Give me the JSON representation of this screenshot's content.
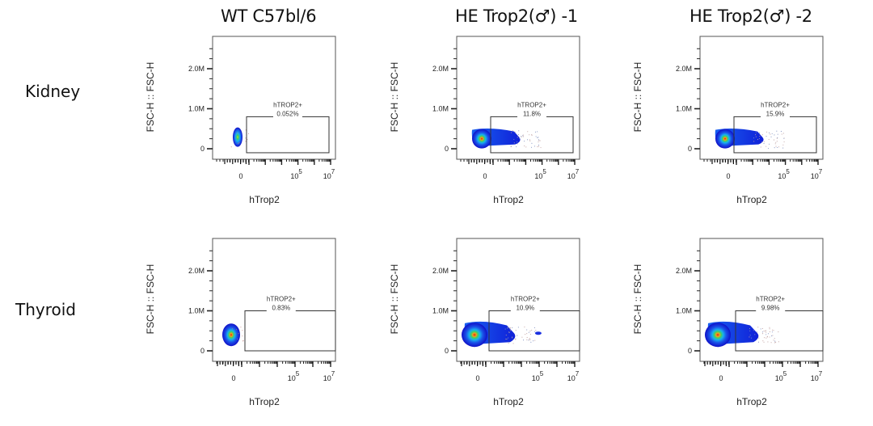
{
  "figure": {
    "columns": [
      {
        "title": "WT C57bl/6"
      },
      {
        "title": "HE Trop2(♂) -1"
      },
      {
        "title": "HE Trop2(♂) -2"
      }
    ],
    "rows": [
      {
        "title": "Kidney"
      },
      {
        "title": "Thyroid"
      }
    ]
  },
  "chart_data": [
    {
      "type": "scatter",
      "subtype": "flow-cytometry-density",
      "row": "Kidney",
      "column": "WT C57bl/6",
      "xlabel": "hTrop2",
      "ylabel": "FSC-H :: FSC-H",
      "x_scale": "biexponential",
      "x_ticks": [
        "0",
        "10^5",
        "10^7"
      ],
      "y_ticks": [
        "0",
        "1.0M",
        "2.0M"
      ],
      "ylim": [
        0,
        2800000
      ],
      "gate": {
        "name": "hTROP2+",
        "percent": "0.052%",
        "y_range": [
          -100000,
          800000
        ]
      },
      "population": {
        "spread": "narrow",
        "y_center": 250000
      }
    },
    {
      "type": "scatter",
      "subtype": "flow-cytometry-density",
      "row": "Kidney",
      "column": "HE Trop2(♂) -1",
      "xlabel": "hTrop2",
      "ylabel": "FSC-H :: FSC-H",
      "x_scale": "biexponential",
      "x_ticks": [
        "0",
        "10^5",
        "10^7"
      ],
      "y_ticks": [
        "0",
        "1.0M",
        "2.0M"
      ],
      "ylim": [
        0,
        2800000
      ],
      "gate": {
        "name": "hTROP2+",
        "percent": "11.8%",
        "y_range": [
          -100000,
          800000
        ]
      },
      "population": {
        "spread": "wide",
        "y_center": 250000
      }
    },
    {
      "type": "scatter",
      "subtype": "flow-cytometry-density",
      "row": "Kidney",
      "column": "HE Trop2(♂) -2",
      "xlabel": "hTrop2",
      "ylabel": "FSC-H :: FSC-H",
      "x_scale": "biexponential",
      "x_ticks": [
        "0",
        "10^5",
        "10^7"
      ],
      "y_ticks": [
        "0",
        "1.0M",
        "2.0M"
      ],
      "ylim": [
        0,
        2800000
      ],
      "gate": {
        "name": "hTROP2+",
        "percent": "15.9%",
        "y_range": [
          -100000,
          800000
        ]
      },
      "population": {
        "spread": "wide",
        "y_center": 250000
      }
    },
    {
      "type": "scatter",
      "subtype": "flow-cytometry-density",
      "row": "Thyroid",
      "column": "WT C57bl/6",
      "xlabel": "hTrop2",
      "ylabel": "FSC-H :: FSC-H",
      "x_scale": "biexponential",
      "x_ticks": [
        "0",
        "10^5",
        "10^7"
      ],
      "y_ticks": [
        "0",
        "1.0M",
        "2.0M"
      ],
      "ylim": [
        0,
        2800000
      ],
      "gate": {
        "name": "hTROP2+",
        "percent": "0.83%",
        "y_range": [
          0,
          1000000
        ]
      },
      "population": {
        "spread": "narrow",
        "y_center": 400000
      }
    },
    {
      "type": "scatter",
      "subtype": "flow-cytometry-density",
      "row": "Thyroid",
      "column": "HE Trop2(♂) -1",
      "xlabel": "hTrop2",
      "ylabel": "FSC-H :: FSC-H",
      "x_scale": "biexponential",
      "x_ticks": [
        "0",
        "10^5",
        "10^7"
      ],
      "y_ticks": [
        "0",
        "1.0M",
        "2.0M"
      ],
      "ylim": [
        0,
        2800000
      ],
      "gate": {
        "name": "hTROP2+",
        "percent": "10.9%",
        "y_range": [
          0,
          1000000
        ]
      },
      "population": {
        "spread": "wide",
        "y_center": 400000
      }
    },
    {
      "type": "scatter",
      "subtype": "flow-cytometry-density",
      "row": "Thyroid",
      "column": "HE Trop2(♂) -2",
      "xlabel": "hTrop2",
      "ylabel": "FSC-H :: FSC-H",
      "x_scale": "biexponential",
      "x_ticks": [
        "0",
        "10^5",
        "10^7"
      ],
      "y_ticks": [
        "0",
        "1.0M",
        "2.0M"
      ],
      "ylim": [
        0,
        2800000
      ],
      "gate": {
        "name": "hTROP2+",
        "percent": "9.98%",
        "y_range": [
          0,
          1000000
        ]
      },
      "population": {
        "spread": "wide",
        "y_center": 400000
      }
    }
  ],
  "colors": {
    "density_low": "#1010d0",
    "density_mid": "#18a8f0",
    "density_high": "#30e060",
    "density_peak": "#e02010",
    "frame": "#555555",
    "gate": "#333333"
  }
}
